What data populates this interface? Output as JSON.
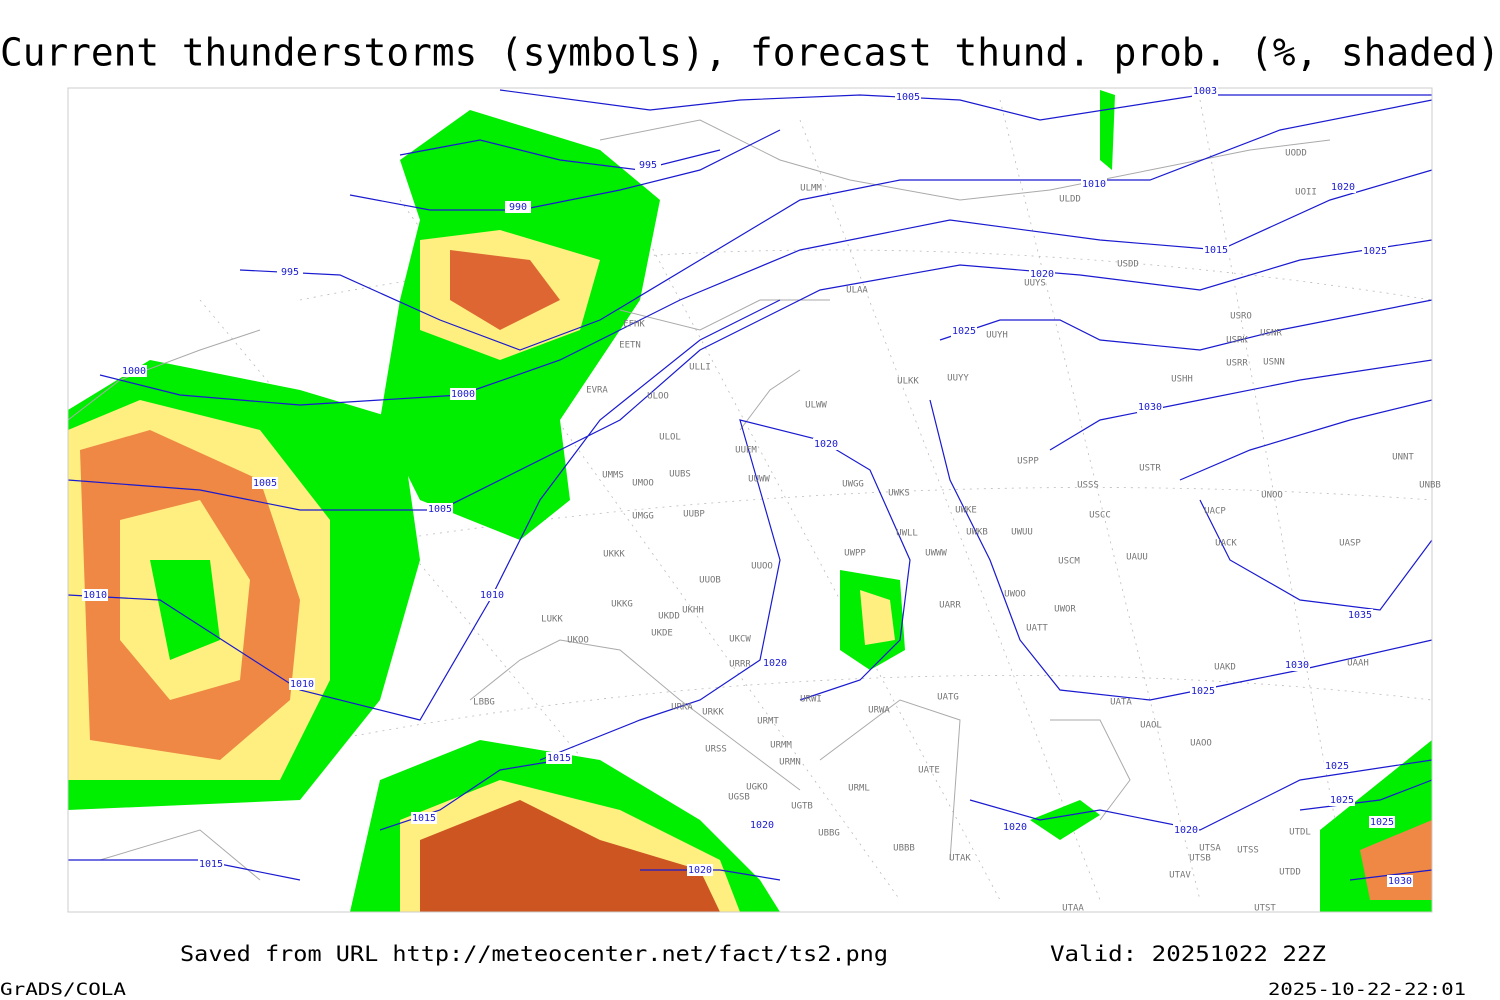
{
  "title": "Current thunderstorms (symbols), forecast thund. prob. (%, shaded)",
  "isobar_labels": [
    "1005",
    "1003",
    "995",
    "990",
    "1010",
    "1020",
    "995",
    "1015",
    "1025",
    "1020",
    "1025",
    "1000",
    "1000",
    "1030",
    "1020",
    "1005",
    "1005",
    "1010",
    "1010",
    "1035",
    "1020",
    "1030",
    "1010",
    "1025",
    "1015",
    "1025",
    "1025",
    "1015",
    "1020",
    "1020",
    "1020",
    "1025",
    "1015",
    "1020",
    "1030"
  ],
  "stations": [
    "ULMM",
    "ULDD",
    "UODD",
    "UOII",
    "USDD",
    "ULAA",
    "UUYS",
    "USRO",
    "USRK",
    "USNR",
    "USRR",
    "USNN",
    "EFHK",
    "EETN",
    "ULLI",
    "UUYH",
    "ULKK",
    "UUYY",
    "USHH",
    "EVRA",
    "ULOO",
    "ULWW",
    "ULOL",
    "UUEM",
    "USPP",
    "USTR",
    "UNNT",
    "UMMS",
    "UUBS",
    "UUWW",
    "UMOO",
    "UWGG",
    "UWKS",
    "USSS",
    "UNOO",
    "UNBB",
    "UMGG",
    "UUBP",
    "UWKE",
    "USCC",
    "UACP",
    "UWKB",
    "UWUU",
    "UWLL",
    "UWWW",
    "UKKK",
    "UWPP",
    "USCM",
    "UAUU",
    "UACK",
    "UASP",
    "UUOO",
    "UUOB",
    "UARR",
    "UWOO",
    "UWOR",
    "UATT",
    "UKHH",
    "UKKG",
    "UKDD",
    "LUKK",
    "UKOO",
    "UKDE",
    "UKCW",
    "URRR",
    "UAKD",
    "UAAH",
    "LBBG",
    "URWI",
    "UATG",
    "UATA",
    "URKA",
    "URKK",
    "URMT",
    "URWA",
    "UAOL",
    "URMM",
    "URSS",
    "UATE",
    "UAOO",
    "URMN",
    "URML",
    "UGKO",
    "UGTB",
    "UGSB",
    "UBBG",
    "UTDL",
    "UBBB",
    "UTSA",
    "UTSS",
    "UTSB",
    "UTAK",
    "UTAV",
    "UTDD",
    "UTAA",
    "UTST"
  ],
  "footer": {
    "saved": "Saved from URL http://meteocenter.net/fact/ts2.png",
    "valid": "Valid: 20251022 22Z",
    "software": "GrADS/COLA",
    "timestamp": "2025-10-22-22:01"
  }
}
